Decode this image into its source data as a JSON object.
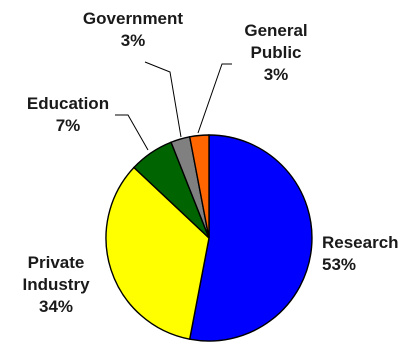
{
  "chart_data": {
    "type": "pie",
    "title": "",
    "slices": [
      {
        "name": "Research",
        "label": [
          "Research"
        ],
        "value": 53,
        "value_label": "53%",
        "color": "#0000ff"
      },
      {
        "name": "Private Industry",
        "label": [
          "Private",
          "Industry"
        ],
        "value": 34,
        "value_label": "34%",
        "color": "#ffff00"
      },
      {
        "name": "Education",
        "label": [
          "Education"
        ],
        "value": 7,
        "value_label": "7%",
        "color": "#006400"
      },
      {
        "name": "Government",
        "label": [
          "Government"
        ],
        "value": 3,
        "value_label": "3%",
        "color": "#808080"
      },
      {
        "name": "General Public",
        "label": [
          "General",
          "Public"
        ],
        "value": 3,
        "value_label": "3%",
        "color": "#ff6600"
      }
    ],
    "legend": "none",
    "labels_outside": true
  }
}
